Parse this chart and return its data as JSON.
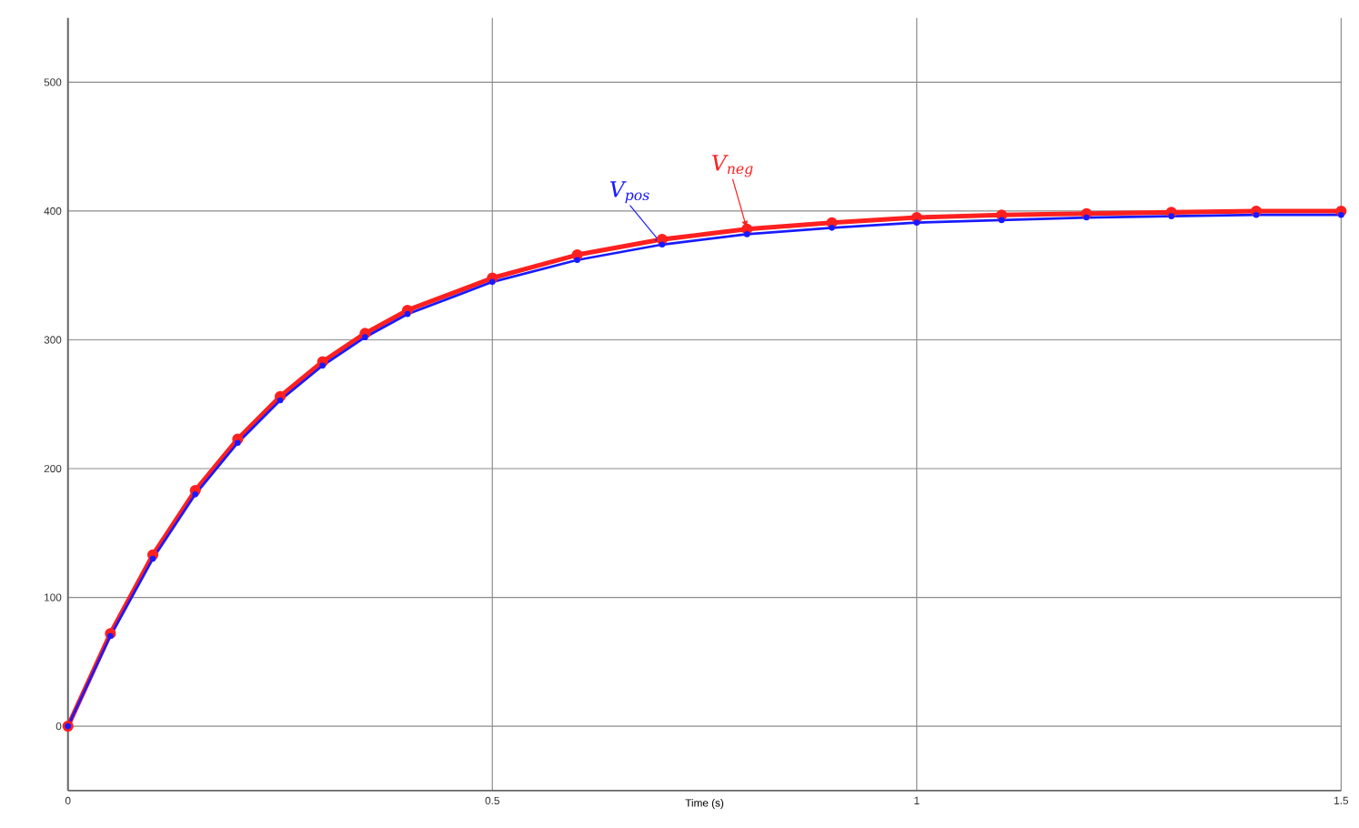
{
  "chart_data": {
    "type": "line",
    "xlabel": "Time (s)",
    "xlim": [
      0,
      1.5
    ],
    "xticks": [
      0,
      0.5,
      1,
      1.5
    ],
    "ylim": [
      -50,
      550
    ],
    "yticks": [
      0,
      100,
      200,
      300,
      400,
      500
    ],
    "grid": true,
    "marker": "circle",
    "line_style": "solid",
    "x": [
      0,
      0.05,
      0.1,
      0.15,
      0.2,
      0.25,
      0.3,
      0.35,
      0.4,
      0.5,
      0.6,
      0.7,
      0.8,
      0.9,
      1.0,
      1.1,
      1.2,
      1.3,
      1.4,
      1.5
    ],
    "series": [
      {
        "name": "V$_{neg}$",
        "color": "#ff2020",
        "values": [
          0,
          72,
          133,
          183,
          223,
          256,
          283,
          305,
          323,
          348,
          366,
          378,
          386,
          391,
          395,
          397,
          398,
          399,
          400,
          400
        ]
      },
      {
        "name": "V$_{pos}$",
        "color": "#1a1aff",
        "values": [
          0,
          70,
          130,
          180,
          220,
          253,
          280,
          302,
          320,
          345,
          362,
          374,
          382,
          387,
          391,
          393,
          395,
          396,
          397,
          397
        ]
      }
    ]
  }
}
